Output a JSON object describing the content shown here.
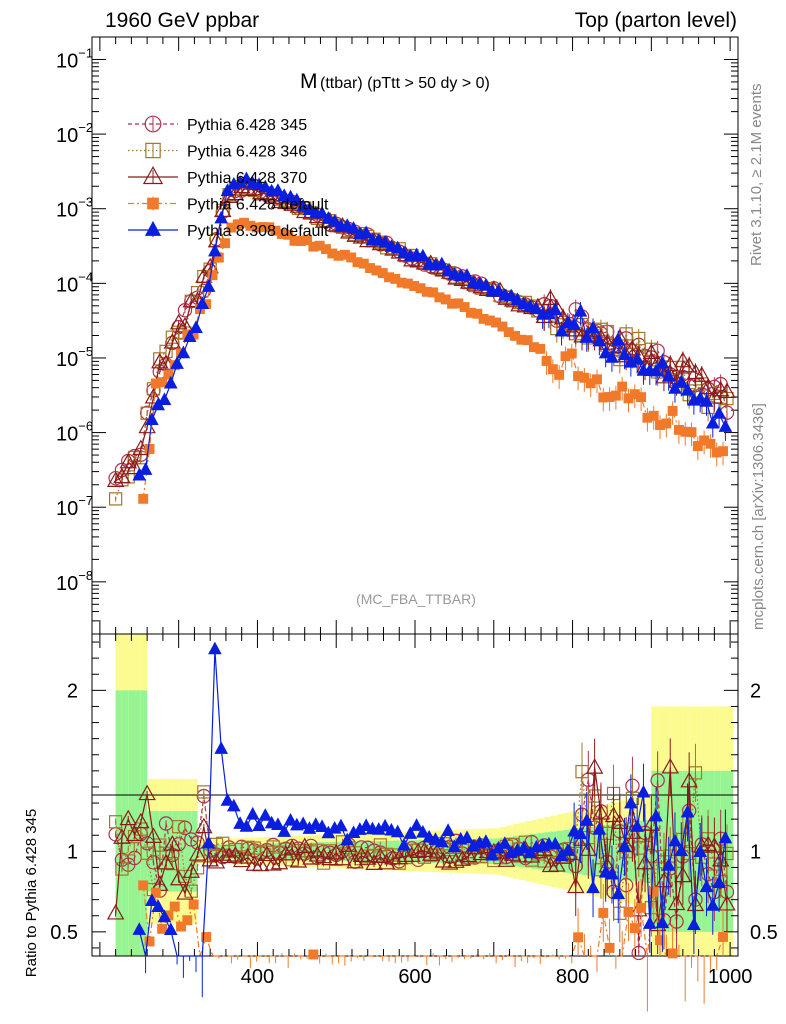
{
  "header": {
    "left": "1960 GeV ppbar",
    "right": "Top (parton level)"
  },
  "side_labels": {
    "rivet": "Rivet 3.1.10, ≥ 2.1M events",
    "mcplots": "mcplots.cern.ch [arXiv:1306.3436]"
  },
  "chart_data": {
    "type": "line",
    "title_main": "M",
    "title_rest": "(ttbar) (pTtt > 50 dy > 0)",
    "analysis_label": "(MC_FBA_TTBAR)",
    "main": {
      "yscale": "log",
      "ylim": [
        2e-09,
        0.2
      ],
      "y_ticks": [
        {
          "v": 1e-08,
          "m": "10",
          "e": "−8"
        },
        {
          "v": 1e-07,
          "m": "10",
          "e": "−7"
        },
        {
          "v": 1e-06,
          "m": "10",
          "e": "−6"
        },
        {
          "v": 1e-05,
          "m": "10",
          "e": "−5"
        },
        {
          "v": 0.0001,
          "m": "10",
          "e": "−4"
        },
        {
          "v": 0.001,
          "m": "10",
          "e": "−3"
        },
        {
          "v": 0.01,
          "m": "10",
          "e": "−2"
        },
        {
          "v": 0.1,
          "m": "10",
          "e": "−1"
        }
      ]
    },
    "ratio": {
      "ylabel": "Ratio to Pythia 6.428 345",
      "ylim": [
        0.35,
        2.35
      ],
      "y_ticks": [
        0.5,
        1,
        2
      ],
      "y_tick_labels": [
        "0.5",
        "1",
        "2"
      ]
    },
    "xlim": [
      190,
      1010
    ],
    "x_ticks": [
      400,
      600,
      800,
      1000
    ],
    "x_tick_labels": [
      "400",
      "600",
      "800",
      "1000"
    ],
    "legend_position": "top-left",
    "series": [
      {
        "name": "Pythia 6.428 345",
        "color": "#b03050",
        "marker": "circle-open",
        "dash": "4,3",
        "anchors": [
          [
            220,
            2e-07
          ],
          [
            250,
            5e-07
          ],
          [
            270,
            5e-06
          ],
          [
            290,
            1.5e-05
          ],
          [
            310,
            4e-05
          ],
          [
            340,
            0.00015
          ],
          [
            360,
            0.0014
          ],
          [
            380,
            0.002
          ],
          [
            420,
            0.0015
          ],
          [
            500,
            0.0006
          ],
          [
            600,
            0.00022
          ],
          [
            700,
            8e-05
          ],
          [
            800,
            2.8e-05
          ],
          [
            900,
            9e-06
          ],
          [
            1000,
            3e-06
          ]
        ],
        "ratio_anchors": [
          [
            250,
            1
          ],
          [
            1000,
            1
          ]
        ]
      },
      {
        "name": "Pythia 6.428 346",
        "color": "#a07828",
        "marker": "square-open",
        "dash": "1.5,2.5",
        "anchors": [
          [
            220,
            2e-07
          ],
          [
            250,
            5e-07
          ],
          [
            270,
            5e-06
          ],
          [
            290,
            1.5e-05
          ],
          [
            310,
            4e-05
          ],
          [
            340,
            0.00015
          ],
          [
            360,
            0.0015
          ],
          [
            380,
            0.002
          ],
          [
            420,
            0.0015
          ],
          [
            500,
            0.0006
          ],
          [
            600,
            0.00022
          ],
          [
            700,
            8e-05
          ],
          [
            800,
            2.8e-05
          ],
          [
            900,
            9e-06
          ],
          [
            1000,
            3e-06
          ]
        ],
        "ratio_anchors": [
          [
            240,
            1.05
          ],
          [
            300,
            1.0
          ],
          [
            400,
            1.0
          ],
          [
            600,
            0.99
          ],
          [
            800,
            0.98
          ],
          [
            900,
            1.05
          ],
          [
            1000,
            1.0
          ]
        ]
      },
      {
        "name": "Pythia 6.428 370",
        "color": "#8b1a1a",
        "marker": "triangle-open",
        "dash": "",
        "anchors": [
          [
            220,
            2e-07
          ],
          [
            250,
            5e-07
          ],
          [
            270,
            5e-06
          ],
          [
            290,
            1.5e-05
          ],
          [
            310,
            4e-05
          ],
          [
            340,
            0.00015
          ],
          [
            360,
            0.0014
          ],
          [
            380,
            0.0019
          ],
          [
            420,
            0.00145
          ],
          [
            500,
            0.00058
          ],
          [
            600,
            0.00021
          ],
          [
            700,
            7.8e-05
          ],
          [
            800,
            2.7e-05
          ],
          [
            900,
            9e-06
          ],
          [
            1000,
            3e-06
          ]
        ],
        "ratio_anchors": [
          [
            240,
            0.98
          ],
          [
            300,
            0.95
          ],
          [
            400,
            0.96
          ],
          [
            600,
            0.97
          ],
          [
            800,
            0.97
          ],
          [
            900,
            1.0
          ],
          [
            1000,
            0.98
          ]
        ]
      },
      {
        "name": "Pythia 6.428 default",
        "color": "#f07a2a",
        "marker": "square-filled",
        "dash": "6,3,2,3",
        "anchors": [
          [
            255,
            1e-07
          ],
          [
            270,
            3e-06
          ],
          [
            300,
            1e-05
          ],
          [
            330,
            4e-05
          ],
          [
            350,
            0.0002
          ],
          [
            370,
            0.00065
          ],
          [
            400,
            0.0006
          ],
          [
            500,
            0.00025
          ],
          [
            600,
            9e-05
          ],
          [
            700,
            3e-05
          ],
          [
            770,
            1.2e-05
          ],
          [
            800,
            6e-06
          ],
          [
            850,
            4e-06
          ],
          [
            900,
            2e-06
          ],
          [
            950,
            9e-07
          ],
          [
            1000,
            5e-07
          ]
        ],
        "ratio_anchors": [
          [
            260,
            0.6
          ],
          [
            300,
            0.6
          ],
          [
            340,
            0.3
          ],
          [
            700,
            0.3
          ],
          [
            1000,
            0.3
          ]
        ]
      },
      {
        "name": "Pythia 8.308 default",
        "color": "#0a1ee0",
        "marker": "triangle-filled",
        "dash": "",
        "anchors": [
          [
            250,
            2e-07
          ],
          [
            270,
            2e-06
          ],
          [
            300,
            8e-06
          ],
          [
            320,
            2.5e-05
          ],
          [
            340,
            0.00012
          ],
          [
            360,
            0.0016
          ],
          [
            380,
            0.0024
          ],
          [
            420,
            0.0018
          ],
          [
            500,
            0.00065
          ],
          [
            600,
            0.00023
          ],
          [
            700,
            8e-05
          ],
          [
            800,
            2.7e-05
          ],
          [
            900,
            8e-06
          ],
          [
            1000,
            1.5e-06
          ]
        ],
        "ratio_anchors": [
          [
            300,
            0.4
          ],
          [
            330,
            0.3
          ],
          [
            340,
            1.5
          ],
          [
            345,
            2.35
          ],
          [
            352,
            1.8
          ],
          [
            360,
            1.3
          ],
          [
            380,
            1.2
          ],
          [
            450,
            1.15
          ],
          [
            550,
            1.12
          ],
          [
            650,
            1.08
          ],
          [
            700,
            1.02
          ],
          [
            800,
            1.0
          ],
          [
            1000,
            0.95
          ]
        ]
      }
    ]
  }
}
